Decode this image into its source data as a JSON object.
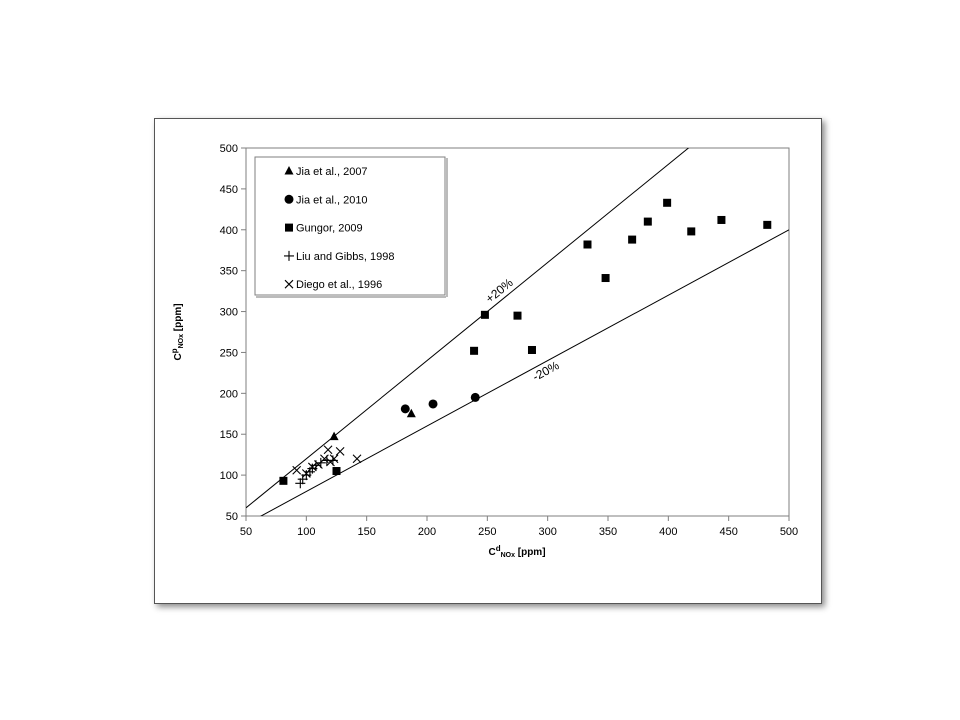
{
  "chart_data": {
    "type": "scatter",
    "xlabel": {
      "base": "C",
      "sup": "d",
      "sub": "NOx",
      "unit": " [ppm]"
    },
    "ylabel": {
      "base": "C",
      "sup": "p",
      "sub": "NOx",
      "unit": " [ppm]"
    },
    "xlim": [
      50,
      500
    ],
    "ylim": [
      50,
      500
    ],
    "xticks": [
      50,
      100,
      150,
      200,
      250,
      300,
      350,
      400,
      450,
      500
    ],
    "yticks": [
      50,
      100,
      150,
      200,
      250,
      300,
      350,
      400,
      450,
      500
    ],
    "grid": false,
    "legend_position": "top-left",
    "reference_lines": [
      {
        "label": "+20%",
        "slope": 1.2
      },
      {
        "label": "-20%",
        "slope": 0.8
      }
    ],
    "series": [
      {
        "name": "Jia et al., 2007",
        "marker": "triangle",
        "points": [
          [
            123,
            147
          ],
          [
            187,
            175
          ]
        ]
      },
      {
        "name": "Jia et al., 2010",
        "marker": "circle",
        "points": [
          [
            182,
            181
          ],
          [
            205,
            187
          ],
          [
            240,
            195
          ]
        ]
      },
      {
        "name": "Gungor, 2009",
        "marker": "square",
        "points": [
          [
            81,
            93
          ],
          [
            125,
            105
          ],
          [
            239,
            252
          ],
          [
            248,
            296
          ],
          [
            275,
            295
          ],
          [
            287,
            253
          ],
          [
            333,
            382
          ],
          [
            348,
            341
          ],
          [
            370,
            388
          ],
          [
            383,
            410
          ],
          [
            399,
            433
          ],
          [
            419,
            398
          ],
          [
            444,
            412
          ],
          [
            482,
            406
          ]
        ]
      },
      {
        "name": "Liu and Gibbs, 1998",
        "marker": "plus",
        "points": [
          [
            95,
            90
          ],
          [
            97,
            95
          ],
          [
            100,
            100
          ],
          [
            103,
            104
          ],
          [
            105,
            108
          ],
          [
            108,
            112
          ],
          [
            112,
            115
          ],
          [
            117,
            118
          ],
          [
            122,
            118
          ]
        ]
      },
      {
        "name": "Diego et al., 1996",
        "marker": "x",
        "points": [
          [
            92,
            106
          ],
          [
            100,
            102
          ],
          [
            105,
            110
          ],
          [
            110,
            113
          ],
          [
            115,
            120
          ],
          [
            118,
            131
          ],
          [
            120,
            116
          ],
          [
            123,
            120
          ],
          [
            128,
            129
          ],
          [
            142,
            120
          ]
        ]
      }
    ]
  }
}
